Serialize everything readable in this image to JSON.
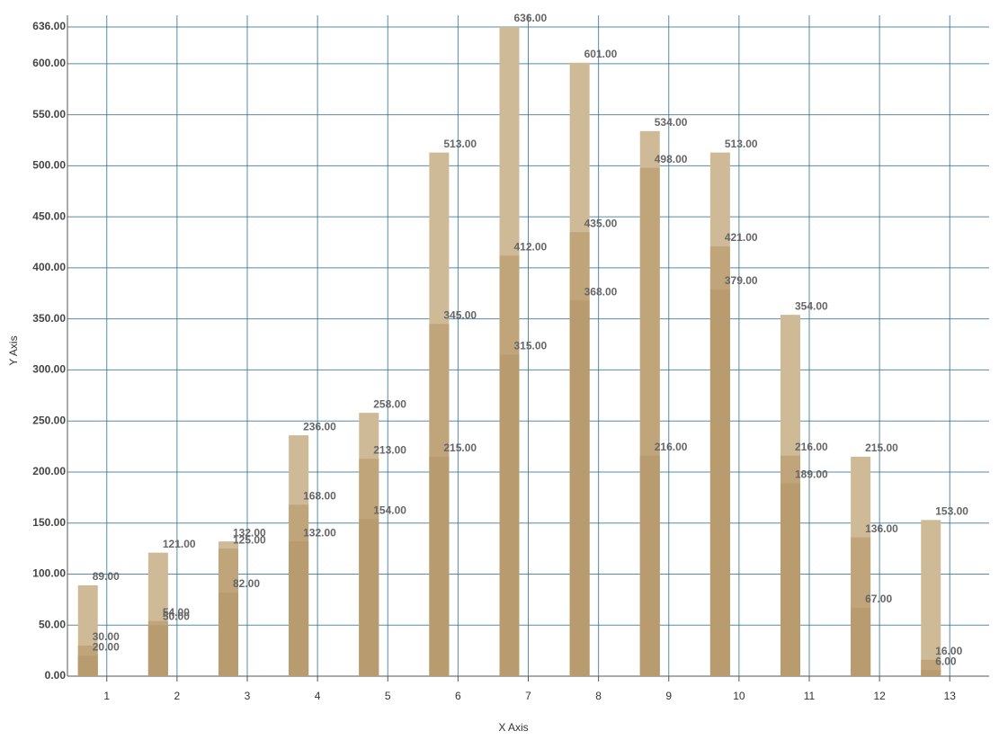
{
  "chart_data": {
    "type": "bar",
    "x_label": "X Axis",
    "y_label": "Y Axis",
    "x": [
      1,
      2,
      3,
      4,
      5,
      6,
      7,
      8,
      9,
      10,
      11,
      12,
      13
    ],
    "xlim": [
      0.44,
      13.56
    ],
    "xticks": [
      1,
      2,
      3,
      4,
      5,
      6,
      7,
      8,
      9,
      10,
      11,
      12,
      13
    ],
    "ylim": [
      0,
      636
    ],
    "yticks": [
      {
        "value": 0,
        "label": "0.00"
      },
      {
        "value": 50,
        "label": "50.00"
      },
      {
        "value": 100,
        "label": "100.00"
      },
      {
        "value": 150,
        "label": "150.00"
      },
      {
        "value": 200,
        "label": "200.00"
      },
      {
        "value": 250,
        "label": "250.00"
      },
      {
        "value": 300,
        "label": "300.00"
      },
      {
        "value": 350,
        "label": "350.00"
      },
      {
        "value": 400,
        "label": "400.00"
      },
      {
        "value": 450,
        "label": "450.00"
      },
      {
        "value": 500,
        "label": "500.00"
      },
      {
        "value": 550,
        "label": "550.00"
      },
      {
        "value": 600,
        "label": "600.00"
      },
      {
        "value": 636,
        "label": "636.00"
      }
    ],
    "grid": true,
    "series": [
      {
        "color": "#cfba97",
        "values": [
          89,
          121,
          132,
          236,
          258,
          513,
          636,
          601,
          534,
          513,
          354,
          215,
          153
        ],
        "value_labels": [
          "89.00",
          "121.00",
          "132.00",
          "236.00",
          "258.00",
          "513.00",
          "636.00",
          "601.00",
          "534.00",
          "513.00",
          "354.00",
          "215.00",
          "153.00"
        ]
      },
      {
        "color": "#c0a57b",
        "values": [
          30,
          54,
          125,
          168,
          213,
          345,
          412,
          435,
          498,
          421,
          216,
          136,
          16
        ],
        "value_labels": [
          "30.00",
          "54.00",
          "125.00",
          "168.00",
          "213.00",
          "345.00",
          "412.00",
          "435.00",
          "498.00",
          "421.00",
          "216.00",
          "136.00",
          "16.00"
        ]
      },
      {
        "color": "#b89c6f",
        "values": [
          20,
          50,
          82,
          132,
          154,
          215,
          315,
          368,
          216,
          379,
          189,
          67,
          6
        ],
        "value_labels": [
          "20.00",
          "50.00",
          "82.00",
          "132.00",
          "154.00",
          "215.00",
          "315.00",
          "368.00",
          "216.00",
          "379.00",
          "189.00",
          "67.00",
          "6.00"
        ]
      }
    ]
  }
}
